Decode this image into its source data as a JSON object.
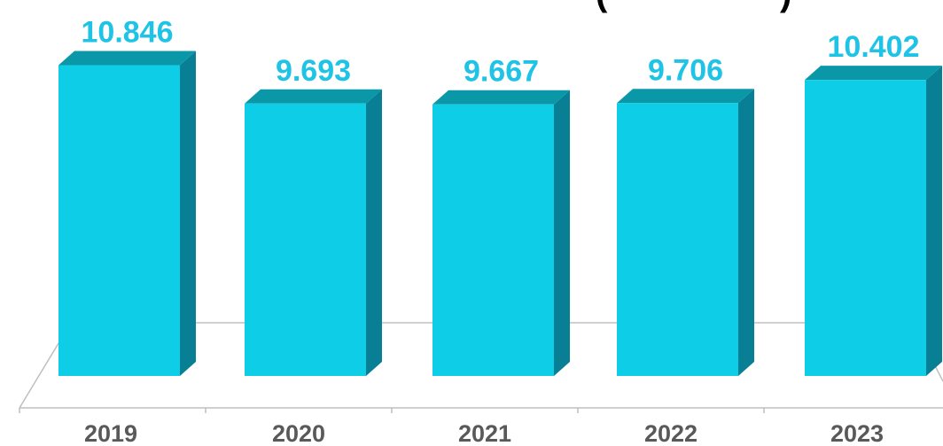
{
  "chart_data": {
    "type": "bar",
    "title_fragment": "(",
    "title_fragment_end": ")",
    "categories": [
      "2019",
      "2020",
      "2021",
      "2022",
      "2023"
    ],
    "values": [
      10.846,
      9.693,
      9.667,
      9.706,
      10.402
    ],
    "value_labels": [
      "10.846",
      "9.693",
      "9.667",
      "9.706",
      "10.402"
    ],
    "legend": false,
    "grid": false,
    "colors": {
      "bar_front": "#0ecde6",
      "bar_side": "#087f94",
      "bar_top": "#0a97a8",
      "value_label": "#1ec3e6",
      "category_label": "#595959",
      "floor_line": "#a6a6a6",
      "title": "#000000"
    }
  }
}
